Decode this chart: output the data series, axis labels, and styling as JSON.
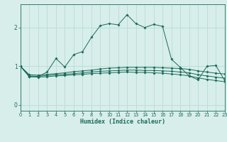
{
  "xlabel": "Humidex (Indice chaleur)",
  "xlim": [
    0,
    23
  ],
  "ylim": [
    -0.15,
    2.6
  ],
  "yticks": [
    0,
    1,
    2
  ],
  "xticks": [
    0,
    1,
    2,
    3,
    4,
    5,
    6,
    7,
    8,
    9,
    10,
    11,
    12,
    13,
    14,
    15,
    16,
    17,
    18,
    19,
    20,
    21,
    22,
    23
  ],
  "bg_color": "#d8eeea",
  "line_color": "#1a6b5a",
  "grid_color": "#b8dcd6",
  "series_main": [
    1.0,
    0.73,
    0.73,
    0.85,
    1.2,
    0.98,
    1.3,
    1.38,
    1.75,
    2.05,
    2.1,
    2.07,
    2.33,
    2.1,
    2.0,
    2.08,
    2.03,
    1.18,
    0.97,
    0.75,
    0.65,
    1.0,
    1.02,
    0.63
  ],
  "series_env1": [
    1.0,
    0.78,
    0.77,
    0.79,
    0.81,
    0.83,
    0.86,
    0.88,
    0.9,
    0.93,
    0.95,
    0.96,
    0.97,
    0.97,
    0.97,
    0.97,
    0.96,
    0.95,
    0.94,
    0.92,
    0.88,
    0.85,
    0.82,
    0.8
  ],
  "series_env2": [
    1.0,
    0.75,
    0.74,
    0.76,
    0.78,
    0.79,
    0.81,
    0.83,
    0.85,
    0.87,
    0.88,
    0.89,
    0.9,
    0.9,
    0.89,
    0.89,
    0.88,
    0.87,
    0.85,
    0.83,
    0.78,
    0.75,
    0.72,
    0.69
  ],
  "series_env3": [
    1.0,
    0.73,
    0.72,
    0.73,
    0.75,
    0.76,
    0.78,
    0.79,
    0.81,
    0.82,
    0.83,
    0.84,
    0.85,
    0.84,
    0.84,
    0.83,
    0.82,
    0.8,
    0.78,
    0.75,
    0.7,
    0.66,
    0.63,
    0.6
  ]
}
